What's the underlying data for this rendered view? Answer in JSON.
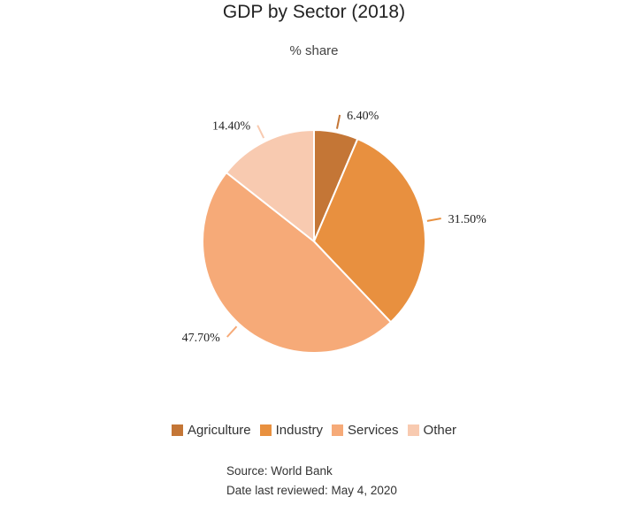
{
  "chart_data": {
    "type": "pie",
    "title": "GDP by Sector (2018)",
    "subtitle": "% share",
    "categories": [
      "Agriculture",
      "Industry",
      "Services",
      "Other"
    ],
    "values": [
      6.4,
      31.5,
      47.7,
      14.4
    ],
    "data_labels": [
      "6.40%",
      "31.50%",
      "47.70%",
      "14.40%"
    ],
    "colors": [
      "#c47636",
      "#e8903f",
      "#f6aa78",
      "#f8cab0"
    ],
    "legend_position": "bottom"
  },
  "legend": {
    "items": [
      {
        "label": "Agriculture",
        "color": "#c47636"
      },
      {
        "label": "Industry",
        "color": "#e8903f"
      },
      {
        "label": "Services",
        "color": "#f6aa78"
      },
      {
        "label": "Other",
        "color": "#f8cab0"
      }
    ]
  },
  "footer": {
    "source": "Source: World Bank",
    "reviewed": "Date last reviewed: May 4, 2020"
  }
}
